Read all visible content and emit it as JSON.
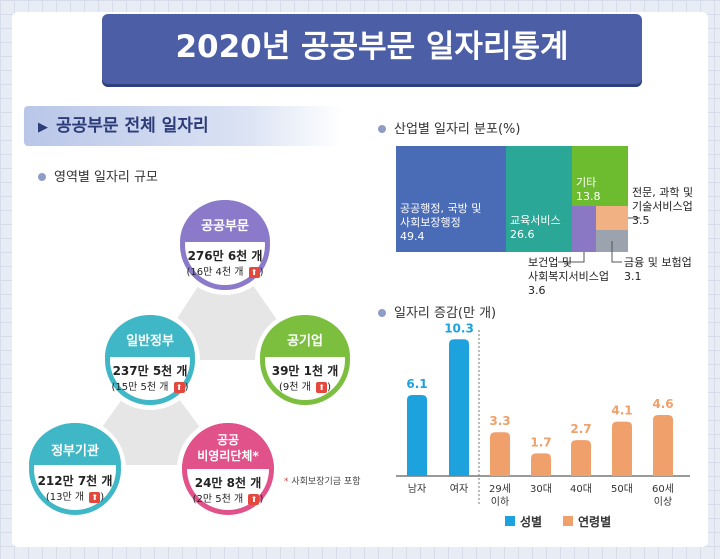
{
  "title": "2020년 공공부문 일자리통계",
  "section_title": "공공부문 전체 일자리",
  "left": {
    "subtitle": "영역별 일자리 규모",
    "nodes": {
      "public": {
        "title": "공공부문",
        "value": "276만 6천 개",
        "change": "(16만 4천 개",
        "color": "#8a7ac9"
      },
      "general_gov": {
        "title": "일반정부",
        "value": "237만 5천 개",
        "change": "(15만 5천 개",
        "color": "#3fb7c6"
      },
      "public_corp": {
        "title": "공기업",
        "value": "39만 1천 개",
        "change": "(9천 개",
        "color": "#7cbf3f"
      },
      "gov_agency": {
        "title": "정부기관",
        "value": "212만 7천 개",
        "change": "(13만 개",
        "color": "#3fb7c6"
      },
      "nonprofit": {
        "title_line1": "공공",
        "title_line2": "비영리단체*",
        "value": "24만 8천 개",
        "change": "(2만 5천 개",
        "color": "#e2528a"
      }
    },
    "up_symbol": "⬆",
    "close_paren": ")",
    "footnote_star": "*",
    "footnote": "사회보장기금 포함"
  },
  "chart_data": [
    {
      "type": "treemap",
      "title": "산업별 일자리 분포(%)",
      "items": [
        {
          "name": "공공행정, 국방 및 사회보장행정",
          "line1": "공공행정, 국방 및",
          "line2": "사회보장행정",
          "value": 49.4,
          "color": "#4a6bb5"
        },
        {
          "name": "교육서비스",
          "value": 26.6,
          "color": "#2aa797"
        },
        {
          "name": "기타",
          "value": 13.8,
          "color": "#6dbb2f"
        },
        {
          "name": "보건업 및 사회복지서비스업",
          "line1": "보건업 및",
          "line2": "사회복지서비스업",
          "value": 3.6,
          "color": "#8a78c5"
        },
        {
          "name": "금융 및 보험업",
          "value": 3.1,
          "color": "#9aa3ae"
        },
        {
          "name": "전문, 과학 및 기술서비스업",
          "line1": "전문, 과학 및",
          "line2": "기술서비스업",
          "value": 3.5,
          "color": "#f2b183"
        }
      ]
    },
    {
      "type": "bar",
      "title": "일자리 증감(만 개)",
      "categories": [
        "남자",
        "여자",
        "29세 이하",
        "30대",
        "40대",
        "50대",
        "60세 이상"
      ],
      "category_lines": [
        [
          "남자"
        ],
        [
          "여자"
        ],
        [
          "29세",
          "이하"
        ],
        [
          "30대"
        ],
        [
          "40대"
        ],
        [
          "50대"
        ],
        [
          "60세",
          "이상"
        ]
      ],
      "values": [
        6.1,
        10.3,
        3.3,
        1.7,
        2.7,
        4.1,
        4.6
      ],
      "value_labels": [
        "6.1",
        "10.3",
        "3.3",
        "1.7",
        "2.7",
        "4.1",
        "4.6"
      ],
      "groups": [
        "sex",
        "sex",
        "age",
        "age",
        "age",
        "age",
        "age"
      ],
      "series": [
        {
          "name": "성별",
          "color": "#1ea2dd"
        },
        {
          "name": "연령별",
          "color": "#f0a06a"
        }
      ],
      "ylim": [
        0,
        11
      ]
    }
  ]
}
